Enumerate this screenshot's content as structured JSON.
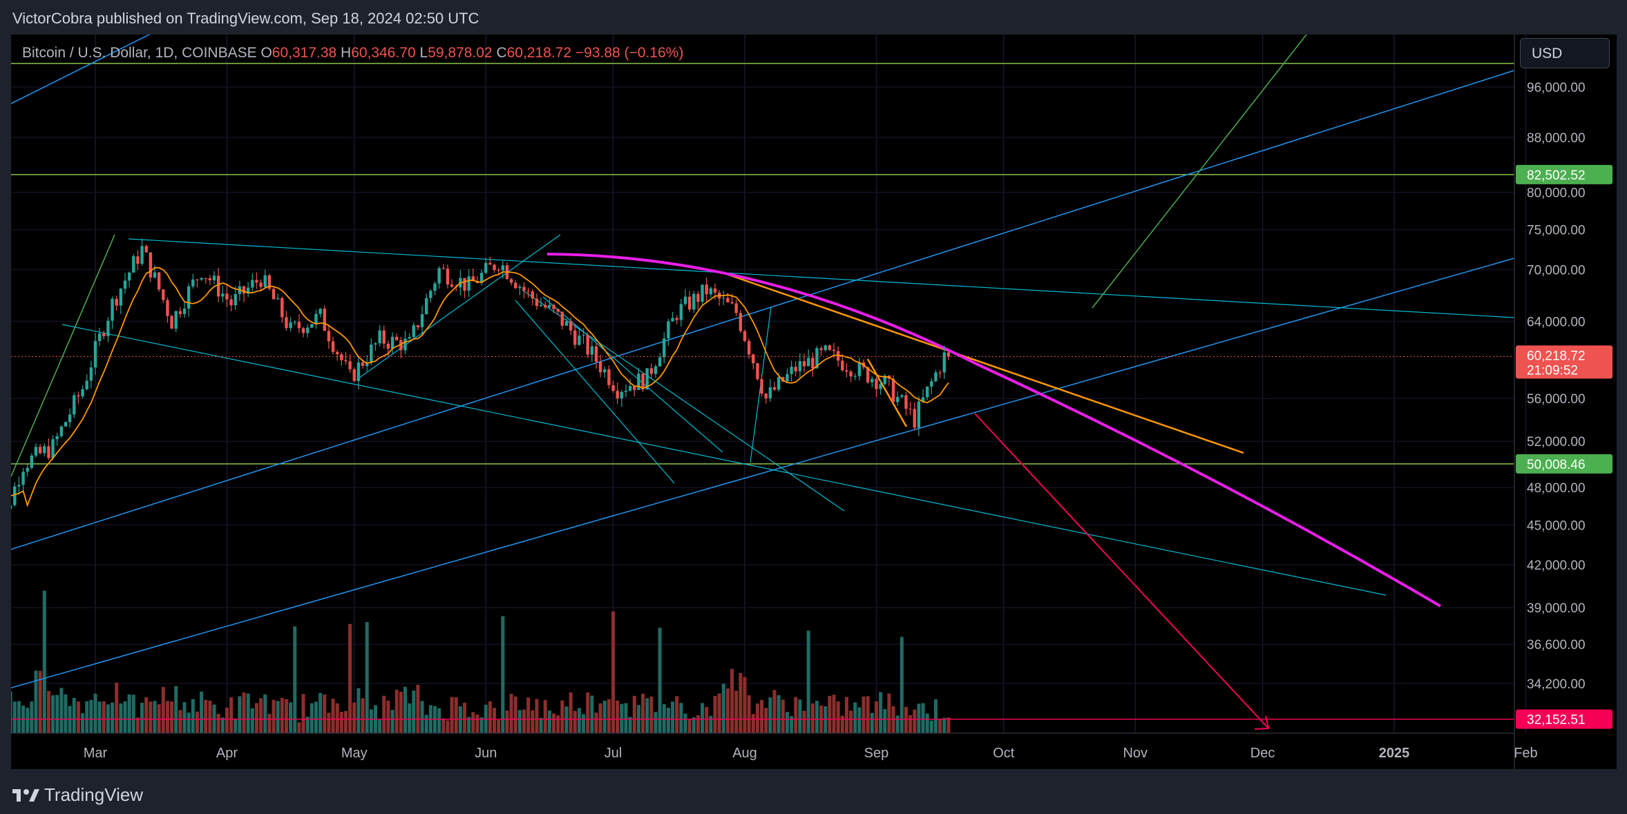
{
  "header": {
    "text": "VictorCobra published on TradingView.com, Sep 18, 2024 02:50 UTC"
  },
  "symbol": {
    "name": "Bitcoin / U.S. Dollar, 1D, COINBASE",
    "o_label": "O",
    "o": "60,317.38",
    "h_label": "H",
    "h": "60,346.70",
    "l_label": "L",
    "l": "59,878.02",
    "c_label": "C",
    "c": "60,218.72",
    "change": "−93.88 (−0.16%)"
  },
  "currency_button": {
    "label": "USD"
  },
  "footer": {
    "logo_text": "TradingView"
  },
  "colors": {
    "up": "#26a69a",
    "down": "#ef5350",
    "magenta": "#e91ee9",
    "orange": "#ff9800",
    "cyan": "#00bcd4",
    "blue": "#2196f3",
    "green": "#4caf50",
    "pink": "#f50057",
    "hline_green": "#8bc34a"
  },
  "chart_data": {
    "type": "candlestick",
    "symbol": "Bitcoin / U.S. Dollar, 1D, COINBASE",
    "last_price": 60218.72,
    "countdown": "21:09:52",
    "y_axis_ticks": [
      96000,
      88000,
      80000,
      75000,
      70000,
      64000,
      56000,
      52000,
      48000,
      45000,
      42000,
      39000,
      36600,
      34200
    ],
    "y_axis_tick_labels": [
      "96,000.00",
      "88,000.00",
      "80,000.00",
      "75,000.00",
      "70,000.00",
      "64,000.00",
      "56,000.00",
      "52,000.00",
      "48,000.00",
      "45,000.00",
      "42,000.00",
      "39,000.00",
      "36,600.00",
      "34,200.00"
    ],
    "x_axis_labels": [
      {
        "label": "Mar",
        "date": "2024-03-01"
      },
      {
        "label": "Apr",
        "date": "2024-04-01"
      },
      {
        "label": "May",
        "date": "2024-05-01"
      },
      {
        "label": "Jun",
        "date": "2024-06-01"
      },
      {
        "label": "Jul",
        "date": "2024-07-01"
      },
      {
        "label": "Aug",
        "date": "2024-08-01"
      },
      {
        "label": "Sep",
        "date": "2024-09-01"
      },
      {
        "label": "Oct",
        "date": "2024-10-01"
      },
      {
        "label": "Nov",
        "date": "2024-11-01"
      },
      {
        "label": "Dec",
        "date": "2024-12-01"
      },
      {
        "label": "2025",
        "date": "2025-01-01",
        "bold": true
      },
      {
        "label": "Feb",
        "date": "2025-02-01"
      }
    ],
    "price_labels": [
      {
        "value": 82502.52,
        "text": "82,502.52",
        "color": "#4caf50"
      },
      {
        "value": 60218.72,
        "text": "60,218.72",
        "sub": "21:09:52",
        "color": "#ef5350"
      },
      {
        "value": 50008.46,
        "text": "50,008.46",
        "color": "#4caf50"
      },
      {
        "value": 32152.51,
        "text": "32,152.51",
        "color": "#f50057"
      }
    ],
    "horizontal_lines": [
      {
        "value": 100000,
        "color": "#8bc34a"
      },
      {
        "value": 82502.52,
        "color": "#8bc34a"
      },
      {
        "value": 50008.46,
        "color": "#8bc34a"
      },
      {
        "value": 32152.51,
        "color": "#f50057"
      }
    ],
    "closes_weekly": [
      {
        "date": "2024-02-06",
        "close": 43000
      },
      {
        "date": "2024-02-13",
        "close": 50000
      },
      {
        "date": "2024-02-20",
        "close": 51500
      },
      {
        "date": "2024-02-27",
        "close": 57000
      },
      {
        "date": "2024-03-05",
        "close": 66000
      },
      {
        "date": "2024-03-12",
        "close": 72500
      },
      {
        "date": "2024-03-19",
        "close": 64000
      },
      {
        "date": "2024-03-26",
        "close": 70000
      },
      {
        "date": "2024-04-02",
        "close": 66000
      },
      {
        "date": "2024-04-09",
        "close": 69000
      },
      {
        "date": "2024-04-16",
        "close": 63000
      },
      {
        "date": "2024-04-23",
        "close": 64500
      },
      {
        "date": "2024-04-30",
        "close": 58000
      },
      {
        "date": "2024-05-07",
        "close": 62000
      },
      {
        "date": "2024-05-14",
        "close": 61500
      },
      {
        "date": "2024-05-21",
        "close": 70000
      },
      {
        "date": "2024-05-28",
        "close": 68000
      },
      {
        "date": "2024-06-04",
        "close": 71000
      },
      {
        "date": "2024-06-11",
        "close": 67000
      },
      {
        "date": "2024-06-18",
        "close": 64500
      },
      {
        "date": "2024-06-25",
        "close": 61000
      },
      {
        "date": "2024-07-02",
        "close": 57000
      },
      {
        "date": "2024-07-09",
        "close": 58000
      },
      {
        "date": "2024-07-16",
        "close": 65000
      },
      {
        "date": "2024-07-23",
        "close": 67500
      },
      {
        "date": "2024-07-30",
        "close": 65000
      },
      {
        "date": "2024-08-06",
        "close": 56000
      },
      {
        "date": "2024-08-13",
        "close": 59000
      },
      {
        "date": "2024-08-20",
        "close": 60500
      },
      {
        "date": "2024-08-27",
        "close": 59000
      },
      {
        "date": "2024-09-03",
        "close": 57500
      },
      {
        "date": "2024-09-10",
        "close": 54000
      },
      {
        "date": "2024-09-17",
        "close": 60218.72
      }
    ],
    "volume_relative": [
      0.35,
      0.5,
      0.9,
      0.45,
      0.6,
      0.3,
      0.55,
      0.4,
      0.3,
      0.45,
      0.25,
      0.35,
      0.5,
      0.3,
      0.55,
      0.3,
      0.35,
      0.25,
      0.4,
      0.3,
      0.45,
      0.6,
      0.35,
      0.4,
      0.3,
      0.95,
      0.45,
      0.4,
      0.3,
      0.35,
      0.4,
      0.3,
      0.25
    ]
  }
}
